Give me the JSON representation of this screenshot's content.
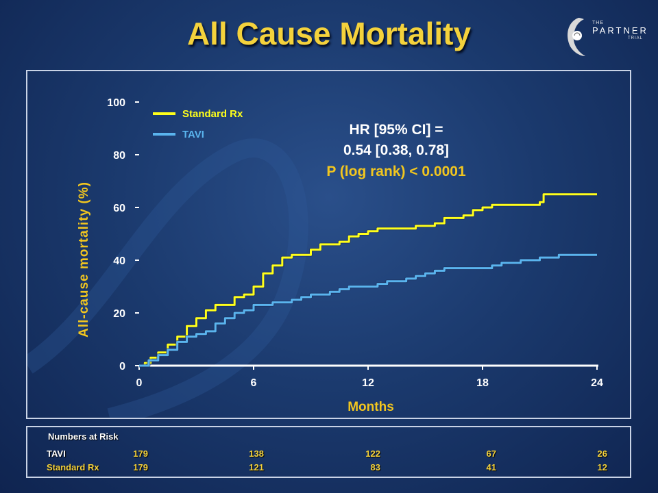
{
  "header": {
    "title": "All Cause Mortality"
  },
  "logo": {
    "the": "THE",
    "name": "PARTNER",
    "trial": "TRIAL"
  },
  "chart_data": {
    "type": "line",
    "xlabel": "Months",
    "ylabel": "All-cause mortality (%)",
    "xlim": [
      0,
      24
    ],
    "ylim": [
      0,
      100
    ],
    "x_ticks": [
      "0",
      "6",
      "12",
      "18",
      "24"
    ],
    "y_ticks": [
      "0",
      "20",
      "40",
      "60",
      "80",
      "100"
    ],
    "legend_position": "top-left",
    "annotation": {
      "line1": "HR [95% CI] =",
      "line2": "0.54 [0.38, 0.78]",
      "line3": "P (log rank) < 0.0001"
    },
    "series": [
      {
        "name": "Standard Rx",
        "color": "#ffff1a",
        "points": [
          [
            0,
            0
          ],
          [
            0.3,
            1
          ],
          [
            0.6,
            3
          ],
          [
            1,
            5
          ],
          [
            1.5,
            8
          ],
          [
            2,
            11
          ],
          [
            2.5,
            15
          ],
          [
            3,
            18
          ],
          [
            3.5,
            21
          ],
          [
            4,
            23
          ],
          [
            4.5,
            23
          ],
          [
            5,
            26
          ],
          [
            5.5,
            27
          ],
          [
            6,
            30
          ],
          [
            6.5,
            35
          ],
          [
            7,
            38
          ],
          [
            7.5,
            41
          ],
          [
            8,
            42
          ],
          [
            8.5,
            42
          ],
          [
            9,
            44
          ],
          [
            9.5,
            46
          ],
          [
            10,
            46
          ],
          [
            10.5,
            47
          ],
          [
            11,
            49
          ],
          [
            11.5,
            50
          ],
          [
            12,
            51
          ],
          [
            12.5,
            52
          ],
          [
            13,
            52
          ],
          [
            14,
            52
          ],
          [
            14.5,
            53
          ],
          [
            15,
            53
          ],
          [
            15.5,
            54
          ],
          [
            16,
            56
          ],
          [
            17,
            57
          ],
          [
            17.5,
            59
          ],
          [
            18,
            60
          ],
          [
            18.5,
            61
          ],
          [
            19,
            61
          ],
          [
            20,
            61
          ],
          [
            21,
            62
          ],
          [
            21.2,
            65
          ],
          [
            22,
            65
          ],
          [
            24,
            65
          ]
        ]
      },
      {
        "name": "TAVI",
        "color": "#5ab4ee",
        "points": [
          [
            0,
            0
          ],
          [
            0.5,
            2
          ],
          [
            1,
            4
          ],
          [
            1.5,
            6
          ],
          [
            2,
            9
          ],
          [
            2.5,
            11
          ],
          [
            3,
            12
          ],
          [
            3.5,
            13
          ],
          [
            4,
            16
          ],
          [
            4.5,
            18
          ],
          [
            5,
            20
          ],
          [
            5.5,
            21
          ],
          [
            6,
            23
          ],
          [
            6.5,
            23
          ],
          [
            7,
            24
          ],
          [
            8,
            25
          ],
          [
            8.5,
            26
          ],
          [
            9,
            27
          ],
          [
            10,
            28
          ],
          [
            10.5,
            29
          ],
          [
            11,
            30
          ],
          [
            12,
            30
          ],
          [
            12.5,
            31
          ],
          [
            13,
            32
          ],
          [
            14,
            33
          ],
          [
            14.5,
            34
          ],
          [
            15,
            35
          ],
          [
            15.5,
            36
          ],
          [
            16,
            37
          ],
          [
            17,
            37
          ],
          [
            18,
            37
          ],
          [
            18.5,
            38
          ],
          [
            19,
            39
          ],
          [
            20,
            40
          ],
          [
            21,
            41
          ],
          [
            22,
            42
          ],
          [
            24,
            42
          ]
        ]
      }
    ]
  },
  "risk_table": {
    "title": "Numbers at Risk",
    "rows": [
      {
        "label": "TAVI",
        "values": [
          "179",
          "138",
          "122",
          "67",
          "26"
        ]
      },
      {
        "label": "Standard Rx",
        "values": [
          "179",
          "121",
          "83",
          "41",
          "12"
        ]
      }
    ]
  }
}
